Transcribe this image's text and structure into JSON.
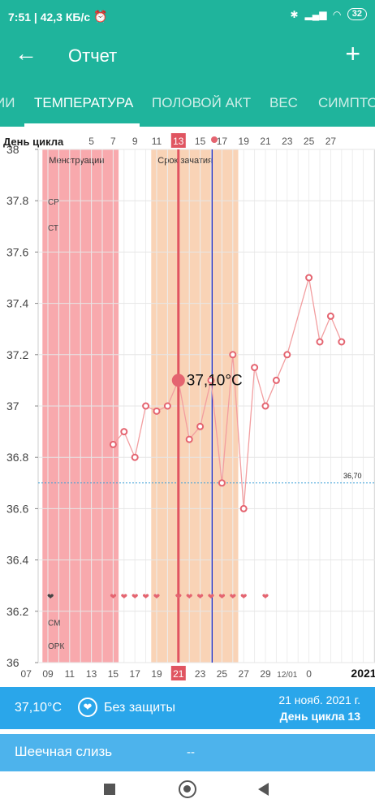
{
  "status_bar": {
    "time_speed": "7:51 | 42,3 КБ/с",
    "battery": "32"
  },
  "appbar": {
    "title": "Отчет"
  },
  "tabs": [
    "ИИ",
    "ТЕМПЕРАТУРА",
    "ПОЛОВОЙ АКТ",
    "ВЕС",
    "СИМПТОМ"
  ],
  "chart_data": {
    "type": "line",
    "top_axis_label": "День цикла",
    "cycle_days": [
      "5",
      "7",
      "9",
      "11",
      "13",
      "15",
      "17",
      "19",
      "21",
      "23",
      "25",
      "27"
    ],
    "bottom_dates": [
      "07",
      "09",
      "11",
      "13",
      "15",
      "17",
      "19",
      "21",
      "23",
      "25",
      "27",
      "29",
      "12/01",
      "0"
    ],
    "year": "2021",
    "ylim": [
      36,
      38
    ],
    "yticks": [
      "36",
      "36.2",
      "36.4",
      "36.6",
      "36.8",
      "37",
      "37.2",
      "37.4",
      "37.6",
      "37.8",
      "38"
    ],
    "left_labels": {
      "cp": "СР",
      "ct": "СТ",
      "cm": "СМ",
      "opk": "ОРК"
    },
    "bands": [
      {
        "label": "Менструации",
        "from_day": 1,
        "to_day": 7,
        "color": "#f8a9ad"
      },
      {
        "label": "Срок зачатия",
        "from_day": 11,
        "to_day": 18,
        "color": "#f9d3b6"
      }
    ],
    "reference": {
      "value": 36.7,
      "label": "36,70"
    },
    "selected": {
      "day": 13,
      "date": "21",
      "value": 37.1,
      "label": "37,10°C"
    },
    "blue_line_day": 16.1,
    "points": [
      {
        "day": 7,
        "t": 36.85
      },
      {
        "day": 8,
        "t": 36.9
      },
      {
        "day": 9,
        "t": 36.8
      },
      {
        "day": 10,
        "t": 37.0
      },
      {
        "day": 11,
        "t": 36.98
      },
      {
        "day": 12,
        "t": 37.0
      },
      {
        "day": 13,
        "t": 37.1
      },
      {
        "day": 14,
        "t": 36.87
      },
      {
        "day": 15,
        "t": 36.92
      },
      {
        "day": 16,
        "t": 37.1
      },
      {
        "day": 17,
        "t": 36.7
      },
      {
        "day": 18,
        "t": 37.2
      },
      {
        "day": 19,
        "t": 36.6
      },
      {
        "day": 20,
        "t": 37.15
      },
      {
        "day": 21,
        "t": 37.0
      },
      {
        "day": 22,
        "t": 37.1
      },
      {
        "day": 23,
        "t": 37.2
      },
      {
        "day": 25,
        "t": 37.5
      },
      {
        "day": 26,
        "t": 37.25
      },
      {
        "day": 27,
        "t": 37.35
      },
      {
        "day": 28,
        "t": 37.25
      }
    ],
    "hearts_days": [
      7,
      8,
      9,
      10,
      11,
      13,
      14,
      15,
      16,
      17,
      18,
      19,
      21
    ],
    "colors": {
      "line": "#f29ea0",
      "point": "#e46470",
      "selected_line": "#e05561",
      "blue": "#1a2ecc",
      "dotted": "#3aa0d8"
    }
  },
  "info": {
    "temp": "37,10°C",
    "protection": "Без защиты",
    "date": "21 нояб. 2021 г.",
    "cycle_day": "День цикла 13"
  },
  "mucus": {
    "label": "Шеечная слизь",
    "value": "--"
  }
}
